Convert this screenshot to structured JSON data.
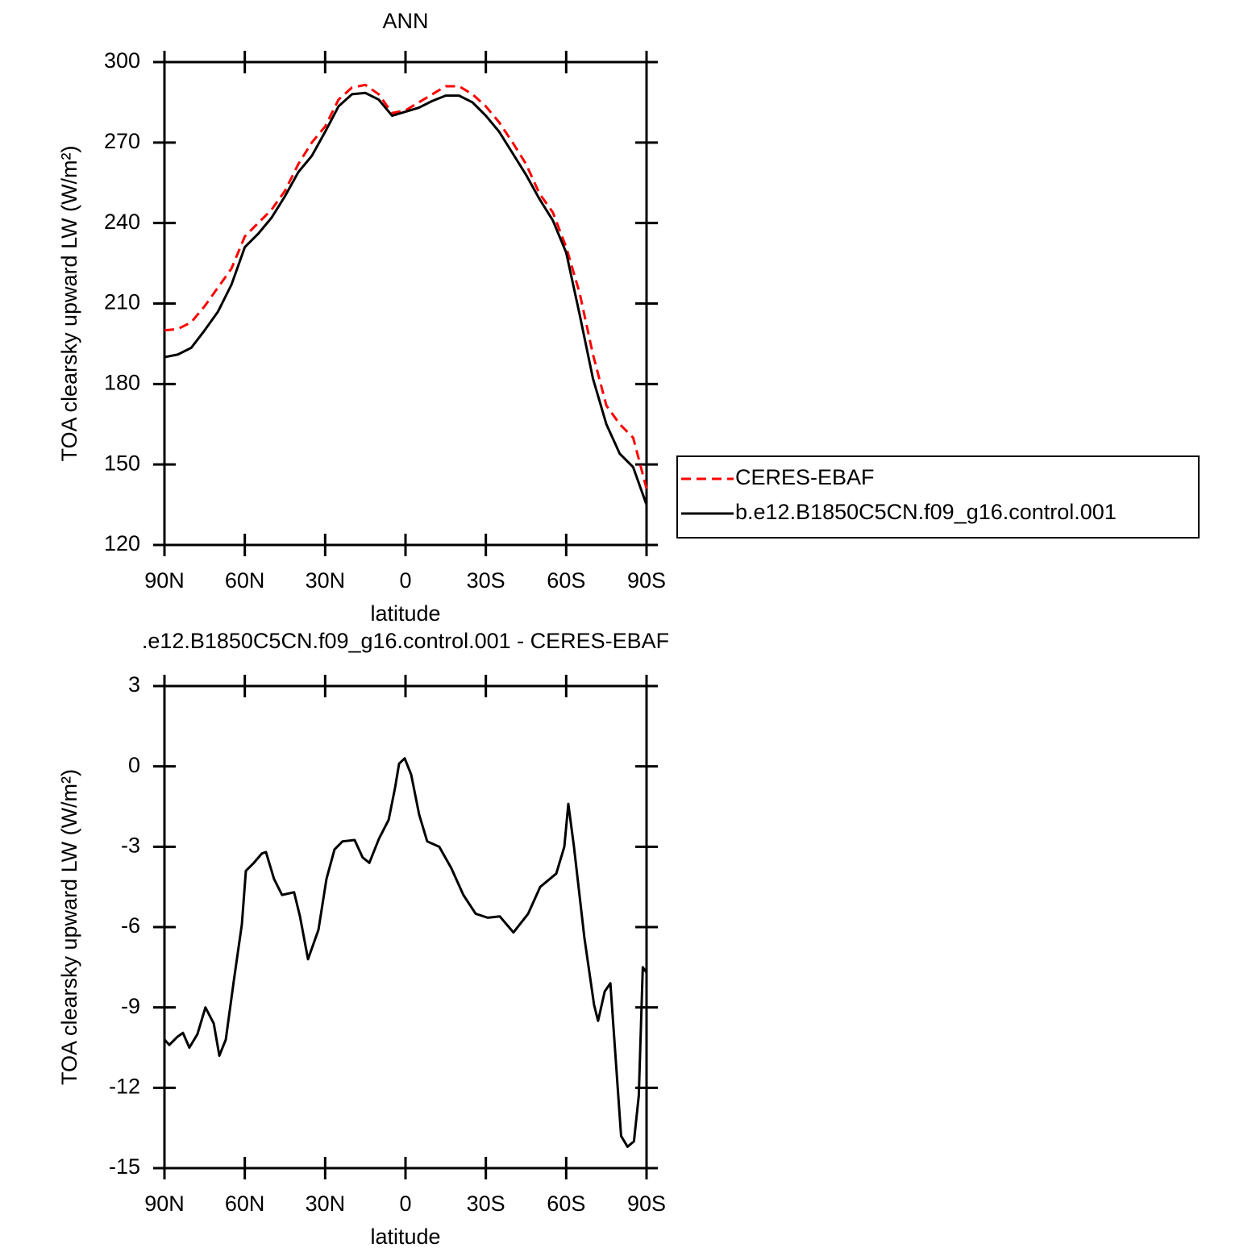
{
  "chart_data": [
    {
      "type": "line",
      "title": "ANN",
      "xlabel": "latitude",
      "ylabel": "TOA clearsky upward LW (W/m²)",
      "x": [
        90,
        85,
        80,
        75,
        70,
        65,
        60,
        55,
        50,
        45,
        40,
        35,
        30,
        25,
        20,
        15,
        10,
        5,
        0,
        -5,
        -10,
        -15,
        -20,
        -25,
        -30,
        -35,
        -40,
        -45,
        -50,
        -55,
        -60,
        -65,
        -70,
        -75,
        -80,
        -85,
        -90
      ],
      "series": [
        {
          "name": "CERES-EBAF",
          "color": "#ff0000",
          "dash": true,
          "values": [
            200,
            200.5,
            203,
            209,
            216,
            223,
            235,
            240,
            245,
            252,
            262,
            270,
            276,
            286,
            290.5,
            291.5,
            288,
            281,
            282,
            285,
            288,
            291,
            291,
            288,
            283.5,
            277.5,
            270,
            262,
            251,
            244,
            231,
            214,
            191,
            172,
            165,
            160,
            141
          ]
        },
        {
          "name": "b.e12.B1850C5CN.f09_g16.control.001",
          "color": "#000000",
          "dash": false,
          "values": [
            190,
            191,
            193.5,
            200,
            207,
            217,
            231,
            236,
            242,
            250,
            259,
            265,
            274,
            283.5,
            288,
            288.5,
            286,
            280,
            281.5,
            283,
            285.5,
            287.5,
            287.5,
            285,
            280,
            274,
            266,
            258,
            249,
            241,
            229,
            206,
            182,
            165,
            154,
            149,
            135
          ]
        }
      ],
      "xlim": [
        90,
        -90
      ],
      "xticks": [
        {
          "value": 90,
          "label": "90N"
        },
        {
          "value": 60,
          "label": "60N"
        },
        {
          "value": 30,
          "label": "30N"
        },
        0,
        {
          "value": -30,
          "label": "30S"
        },
        {
          "value": -60,
          "label": "60S"
        },
        {
          "value": -90,
          "label": "90S"
        }
      ],
      "ylim": [
        120,
        300
      ],
      "yticks": [
        120,
        150,
        180,
        210,
        240,
        270,
        300
      ],
      "legend": "outside-right"
    },
    {
      "type": "line",
      "title": ".e12.B1850C5CN.f09_g16.control.001 - CERES-EBAF",
      "xlabel": "latitude",
      "ylabel": "TOA clearsky upward LW (W/m²)",
      "x": [
        90,
        88.2,
        85.2,
        83.1,
        80.7,
        77.7,
        74.7,
        71.6,
        69.5,
        67.1,
        64.1,
        61.1,
        59.6,
        56.6,
        53.6,
        52.1,
        49.1,
        46.1,
        41.6,
        39.4,
        36.4,
        32.5,
        29.5,
        26.5,
        23.5,
        19,
        16,
        13.5,
        9.9,
        6.3,
        3.9,
        2.4,
        0.3,
        -2.1,
        -5.1,
        -8.1,
        -12.6,
        -17.1,
        -21.6,
        -26.2,
        -30.7,
        -35.2,
        -40.3,
        -45.8,
        -50.3,
        -56.3,
        -59.3,
        -60.8,
        -62.9,
        -66.8,
        -70.4,
        -71.9,
        -74.4,
        -76.5,
        -80.5,
        -82.9,
        -85.3,
        -87.1,
        -88.6,
        -90
      ],
      "series": [
        {
          "color": "#000000",
          "dash": false,
          "values": [
            -10.2,
            -10.4,
            -10.1,
            -9.95,
            -10.5,
            -10,
            -9,
            -9.6,
            -10.8,
            -10.2,
            -8,
            -5.9,
            -3.9,
            -3.6,
            -3.25,
            -3.2,
            -4.2,
            -4.8,
            -4.7,
            -5.6,
            -7.2,
            -6.1,
            -4.2,
            -3.1,
            -2.8,
            -2.75,
            -3.4,
            -3.6,
            -2.7,
            -2,
            -0.8,
            0.1,
            0.3,
            -0.3,
            -1.8,
            -2.8,
            -3,
            -3.8,
            -4.8,
            -5.5,
            -5.65,
            -5.6,
            -6.2,
            -5.5,
            -4.5,
            -4,
            -3,
            -1.4,
            -3,
            -6.4,
            -8.9,
            -9.5,
            -8.4,
            -8.1,
            -13.8,
            -14.2,
            -14,
            -12.3,
            -7.5,
            -7.7
          ]
        }
      ],
      "xlim": [
        90,
        -90
      ],
      "xticks": [
        {
          "value": 90,
          "label": "90N"
        },
        {
          "value": 60,
          "label": "60N"
        },
        {
          "value": 30,
          "label": "30N"
        },
        0,
        {
          "value": -30,
          "label": "30S"
        },
        {
          "value": -60,
          "label": "60S"
        },
        {
          "value": -90,
          "label": "90S"
        }
      ],
      "ylim": [
        -15,
        3
      ],
      "yticks": [
        -15,
        -12,
        -9,
        -6,
        -3,
        0,
        3
      ]
    }
  ]
}
